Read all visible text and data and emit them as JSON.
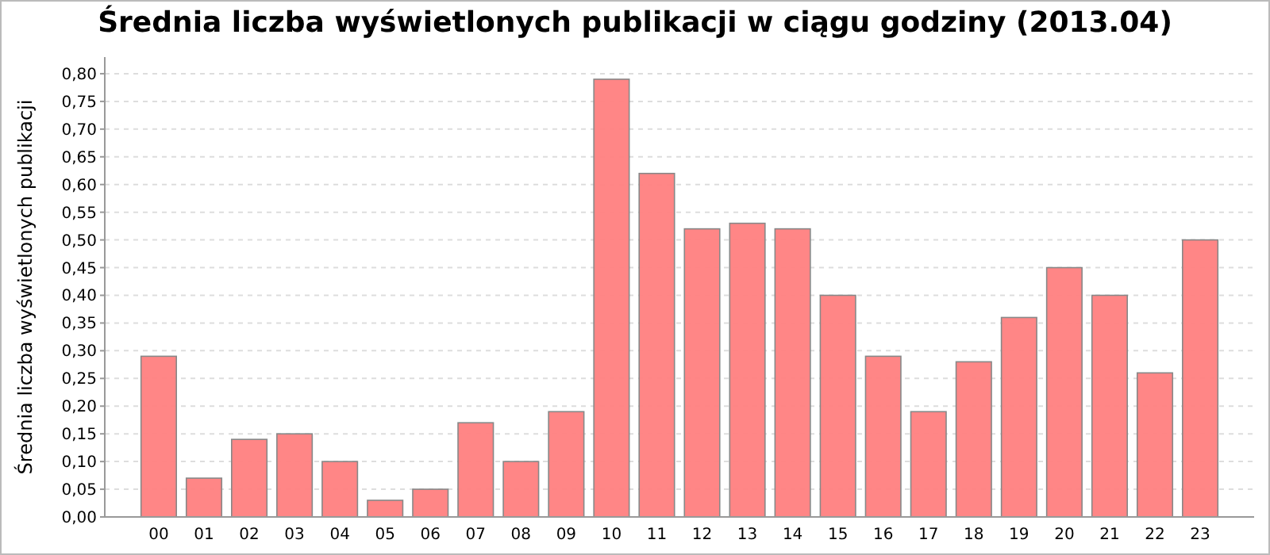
{
  "chart_data": {
    "type": "bar",
    "title": "Średnia liczba wyświetlonych publikacji w ciągu godziny (2013.04)",
    "ylabel": "Średnia liczba wyświetlonych publikacji",
    "categories": [
      "00",
      "01",
      "02",
      "03",
      "04",
      "05",
      "06",
      "07",
      "08",
      "09",
      "10",
      "11",
      "12",
      "13",
      "14",
      "15",
      "16",
      "17",
      "18",
      "19",
      "20",
      "21",
      "22",
      "23"
    ],
    "values": [
      0.29,
      0.07,
      0.14,
      0.15,
      0.1,
      0.03,
      0.05,
      0.17,
      0.1,
      0.19,
      0.79,
      0.62,
      0.52,
      0.53,
      0.52,
      0.4,
      0.29,
      0.19,
      0.28,
      0.36,
      0.45,
      0.4,
      0.26,
      0.5
    ],
    "color": "#ff8080",
    "ylim": [
      0,
      0.83
    ],
    "yticks": [
      {
        "value": 0,
        "label": "0,00"
      },
      {
        "value": 0.05,
        "label": "0,05"
      },
      {
        "value": 0.1,
        "label": "0,10"
      },
      {
        "value": 0.15,
        "label": "0,15"
      },
      {
        "value": 0.2,
        "label": "0,20"
      },
      {
        "value": 0.25,
        "label": "0,25"
      },
      {
        "value": 0.3,
        "label": "0,30"
      },
      {
        "value": 0.35,
        "label": "0,35"
      },
      {
        "value": 0.4,
        "label": "0,40"
      },
      {
        "value": 0.45,
        "label": "0,45"
      },
      {
        "value": 0.5,
        "label": "0,50"
      },
      {
        "value": 0.55,
        "label": "0,55"
      },
      {
        "value": 0.6,
        "label": "0,60"
      },
      {
        "value": 0.65,
        "label": "0,65"
      },
      {
        "value": 0.7,
        "label": "0,70"
      },
      {
        "value": 0.75,
        "label": "0,75"
      },
      {
        "value": 0.8,
        "label": "0,80"
      }
    ],
    "grid": "y"
  }
}
